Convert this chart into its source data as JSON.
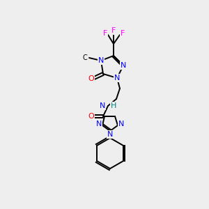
{
  "bg_color": "#eeeeee",
  "atom_colors": {
    "C": "#000000",
    "N": "#0000ff",
    "O": "#ff0000",
    "F": "#ff00ff",
    "H": "#008080"
  },
  "bond_color": "#000000",
  "font_size": 8,
  "bold_font_size": 9
}
